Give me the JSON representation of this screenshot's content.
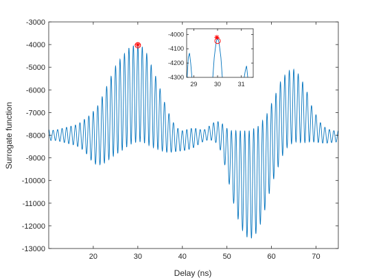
{
  "chart_data": [
    {
      "type": "line",
      "xlabel": "Delay (ns)",
      "ylabel": "Surrogate function",
      "xlim": [
        10,
        75
      ],
      "ylim": [
        -13000,
        -3000
      ],
      "x_ticks": [
        20,
        30,
        40,
        50,
        60,
        70
      ],
      "y_ticks": [
        -13000,
        -12000,
        -11000,
        -10000,
        -9000,
        -8000,
        -7000,
        -6000,
        -5000,
        -4000,
        -3000
      ],
      "x_tick_labels": [
        "20",
        "30",
        "40",
        "50",
        "60",
        "70"
      ],
      "y_tick_labels": [
        "-13000",
        "-12000",
        "-11000",
        "-10000",
        "-9000",
        "-8000",
        "-7000",
        "-6000",
        "-5000",
        "-4000",
        "-3000"
      ],
      "grid": false,
      "line_color": "#0072BD",
      "series": [
        {
          "style": "oscillating line, carrier period ~1 ns",
          "x": [
            10,
            11,
            12,
            13,
            14,
            15,
            16,
            17,
            18,
            19,
            20,
            21,
            22,
            23,
            24,
            25,
            26,
            27,
            28,
            29,
            30,
            31,
            32,
            33,
            34,
            35,
            36,
            37,
            38,
            39,
            40,
            41,
            42,
            43,
            44,
            45,
            46,
            47,
            48,
            49,
            50,
            51,
            52,
            53,
            54,
            55,
            56,
            57,
            58,
            59,
            60,
            61,
            62,
            63,
            64,
            65,
            66,
            67,
            68,
            69,
            70,
            71,
            72,
            73,
            74,
            75
          ],
          "envelope_center": [
            -8000,
            -8000,
            -8000,
            -8000,
            -8000,
            -8000,
            -8000,
            -8000,
            -8000,
            -8050,
            -8100,
            -8000,
            -7800,
            -7500,
            -7200,
            -6900,
            -6700,
            -6500,
            -6300,
            -6200,
            -6150,
            -6200,
            -6400,
            -6700,
            -7000,
            -7300,
            -7650,
            -7900,
            -8100,
            -8200,
            -8250,
            -8200,
            -8150,
            -8100,
            -8050,
            -8000,
            -7900,
            -7850,
            -7900,
            -8200,
            -8700,
            -9200,
            -9600,
            -9900,
            -10100,
            -10200,
            -10100,
            -9900,
            -9500,
            -9000,
            -8400,
            -7900,
            -7400,
            -7000,
            -6800,
            -6700,
            -6800,
            -7000,
            -7200,
            -7500,
            -7700,
            -7900,
            -8000,
            -8050,
            -8050,
            -8050
          ],
          "envelope_amplitude": [
            250,
            220,
            250,
            300,
            350,
            400,
            450,
            550,
            700,
            900,
            1150,
            1300,
            1500,
            1650,
            1800,
            1950,
            2050,
            2100,
            2150,
            2150,
            2150,
            2100,
            2000,
            1800,
            1600,
            1350,
            1100,
            850,
            650,
            500,
            450,
            450,
            450,
            400,
            300,
            250,
            300,
            400,
            500,
            700,
            1000,
            1400,
            1800,
            2100,
            2300,
            2400,
            2400,
            2300,
            2150,
            1950,
            1800,
            1750,
            1750,
            1650,
            1650,
            1600,
            1500,
            1350,
            1100,
            800,
            600,
            450,
            350,
            300,
            250,
            250
          ]
        }
      ],
      "markers": [
        {
          "shape": "circle",
          "color": "#FF0000",
          "x": 30,
          "y": -4030
        },
        {
          "shape": "asterisk",
          "color": "#FF0000",
          "x": 30,
          "y": -4010
        }
      ]
    },
    {
      "type": "line",
      "role": "inset",
      "xlim": [
        28.7,
        31.5
      ],
      "ylim": [
        -4300,
        -3960
      ],
      "x_ticks": [
        29,
        30,
        31
      ],
      "y_ticks": [
        -4300,
        -4200,
        -4100,
        -4000
      ],
      "x_tick_labels": [
        "29",
        "30",
        "31"
      ],
      "y_tick_labels": [
        "-4300",
        "-4200",
        "-4100",
        "-4000"
      ],
      "grid": false,
      "line_color": "#0072BD",
      "series": [
        {
          "x": [
            28.72,
            28.77,
            28.82,
            28.87,
            28.92
          ],
          "y": [
            -4300,
            -4160,
            -4130,
            -4200,
            -4300
          ]
        },
        {
          "x": [
            29.8,
            29.86,
            29.92,
            29.96,
            30.0,
            30.04,
            30.08,
            30.14,
            30.2
          ],
          "y": [
            -4300,
            -4160,
            -4080,
            -4040,
            -4030,
            -4040,
            -4080,
            -4160,
            -4300
          ]
        },
        {
          "x": [
            31.12,
            31.17,
            31.22,
            31.27
          ],
          "y": [
            -4300,
            -4250,
            -4220,
            -4300
          ]
        }
      ],
      "markers": [
        {
          "shape": "circle",
          "color": "#FF0000",
          "x": 30,
          "y": -4045
        },
        {
          "shape": "asterisk",
          "color": "#FF0000",
          "x": 29.97,
          "y": -4020
        }
      ]
    }
  ]
}
